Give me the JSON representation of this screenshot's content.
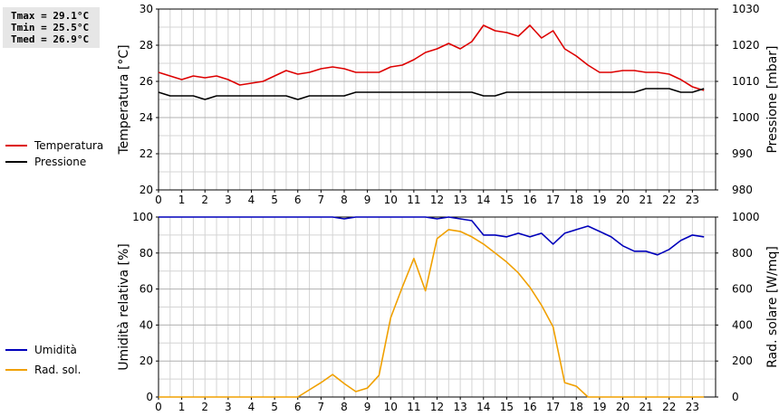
{
  "stats": {
    "tmax": "Tmax = 29.1°C",
    "tmin": "Tmin = 25.5°C",
    "tmed": "Tmed = 26.9°C"
  },
  "chart_data": [
    {
      "type": "line",
      "x_ticks": [
        "0",
        "1",
        "2",
        "3",
        "4",
        "5",
        "6",
        "7",
        "8",
        "9",
        "10",
        "11",
        "12",
        "13",
        "14",
        "15",
        "16",
        "17",
        "18",
        "19",
        "20",
        "21",
        "22",
        "23"
      ],
      "xlim": [
        0,
        24
      ],
      "grid": true,
      "legend_placement": "left",
      "ylabel": "Temperatura [°C]",
      "ylim": [
        20,
        30
      ],
      "y_ticks": [
        20,
        22,
        24,
        26,
        28,
        30
      ],
      "y2label": "Pressione [mbar]",
      "y2lim": [
        980,
        1030
      ],
      "y2_ticks": [
        980,
        990,
        1000,
        1010,
        1020,
        1030
      ],
      "series": [
        {
          "name": "Temperatura",
          "axis": "left",
          "color": "#dd0000",
          "x": [
            0,
            0.5,
            1,
            1.5,
            2,
            2.5,
            3,
            3.5,
            4,
            4.5,
            5,
            5.5,
            6,
            6.5,
            7,
            7.5,
            8,
            8.5,
            9,
            9.5,
            10,
            10.5,
            11,
            11.5,
            12,
            12.5,
            13,
            13.5,
            14,
            14.5,
            15,
            15.5,
            16,
            16.5,
            17,
            17.5,
            18,
            18.5,
            19,
            19.5,
            20,
            20.5,
            21,
            21.5,
            22,
            22.5,
            23,
            23.5
          ],
          "values": [
            26.5,
            26.3,
            26.1,
            26.3,
            26.2,
            26.3,
            26.1,
            25.8,
            25.9,
            26.0,
            26.3,
            26.6,
            26.4,
            26.5,
            26.7,
            26.8,
            26.7,
            26.5,
            26.5,
            26.5,
            26.8,
            26.9,
            27.2,
            27.6,
            27.8,
            28.1,
            27.8,
            28.2,
            29.1,
            28.8,
            28.7,
            28.5,
            29.1,
            28.4,
            28.8,
            27.8,
            27.4,
            26.9,
            26.5,
            26.5,
            26.6,
            26.6,
            26.5,
            26.5,
            26.4,
            26.1,
            25.7,
            25.5
          ]
        },
        {
          "name": "Pressione",
          "axis": "right",
          "color": "#000000",
          "x": [
            0,
            0.5,
            1,
            1.5,
            2,
            2.5,
            3,
            3.5,
            4,
            4.5,
            5,
            5.5,
            6,
            6.5,
            7,
            7.5,
            8,
            8.5,
            9,
            9.5,
            10,
            10.5,
            11,
            11.5,
            12,
            12.5,
            13,
            13.5,
            14,
            14.5,
            15,
            15.5,
            16,
            16.5,
            17,
            17.5,
            18,
            18.5,
            19,
            19.5,
            20,
            20.5,
            21,
            21.5,
            22,
            22.5,
            23,
            23.5
          ],
          "values": [
            1007,
            1006,
            1006,
            1006,
            1005,
            1006,
            1006,
            1006,
            1006,
            1006,
            1006,
            1006,
            1005,
            1006,
            1006,
            1006,
            1006,
            1007,
            1007,
            1007,
            1007,
            1007,
            1007,
            1007,
            1007,
            1007,
            1007,
            1007,
            1006,
            1006,
            1007,
            1007,
            1007,
            1007,
            1007,
            1007,
            1007,
            1007,
            1007,
            1007,
            1007,
            1007,
            1008,
            1008,
            1008,
            1007,
            1007,
            1008
          ]
        }
      ]
    },
    {
      "type": "line",
      "x_ticks": [
        "0",
        "1",
        "2",
        "3",
        "4",
        "5",
        "6",
        "7",
        "8",
        "9",
        "10",
        "11",
        "12",
        "13",
        "14",
        "15",
        "16",
        "17",
        "18",
        "19",
        "20",
        "21",
        "22",
        "23"
      ],
      "xlim": [
        0,
        24
      ],
      "grid": true,
      "legend_placement": "left",
      "ylabel": "Umidità relativa [%]",
      "ylim": [
        0,
        100
      ],
      "y_ticks": [
        0,
        20,
        40,
        60,
        80,
        100
      ],
      "y2label": "Rad. solare [W/mq]",
      "y2lim": [
        0,
        1000
      ],
      "y2_ticks": [
        0,
        200,
        400,
        600,
        800,
        1000
      ],
      "series": [
        {
          "name": "Umidità",
          "axis": "left",
          "color": "#0000bb",
          "x": [
            0,
            0.5,
            1,
            1.5,
            2,
            2.5,
            3,
            3.5,
            4,
            4.5,
            5,
            5.5,
            6,
            6.5,
            7,
            7.5,
            8,
            8.5,
            9,
            9.5,
            10,
            10.5,
            11,
            11.5,
            12,
            12.5,
            13,
            13.5,
            14,
            14.5,
            15,
            15.5,
            16,
            16.5,
            17,
            17.5,
            18,
            18.5,
            19,
            19.5,
            20,
            20.5,
            21,
            21.5,
            22,
            22.5,
            23,
            23.5
          ],
          "values": [
            100,
            100,
            100,
            100,
            100,
            100,
            100,
            100,
            100,
            100,
            100,
            100,
            100,
            100,
            100,
            100,
            99,
            100,
            100,
            100,
            100,
            100,
            100,
            100,
            99,
            100,
            99,
            98,
            90,
            90,
            89,
            91,
            89,
            91,
            85,
            91,
            93,
            95,
            92,
            89,
            84,
            81,
            81,
            79,
            82,
            87,
            90,
            89
          ]
        },
        {
          "name": "Rad. sol.",
          "axis": "right",
          "color": "#f0a000",
          "x": [
            0,
            0.5,
            1,
            1.5,
            2,
            2.5,
            3,
            3.5,
            4,
            4.5,
            5,
            5.5,
            6,
            6.5,
            7,
            7.5,
            8,
            8.5,
            9,
            9.5,
            10,
            10.5,
            11,
            11.5,
            12,
            12.5,
            13,
            13.5,
            14,
            14.5,
            15,
            15.5,
            16,
            16.5,
            17,
            17.5,
            18,
            18.5,
            19,
            19.5,
            20,
            20.5,
            21,
            21.5,
            22,
            22.5,
            23,
            23.5
          ],
          "values": [
            0,
            0,
            0,
            0,
            0,
            0,
            0,
            0,
            0,
            0,
            0,
            0,
            0,
            40,
            80,
            125,
            75,
            30,
            50,
            120,
            440,
            610,
            770,
            590,
            880,
            930,
            920,
            890,
            850,
            800,
            750,
            690,
            610,
            510,
            390,
            80,
            60,
            0,
            0,
            0,
            0,
            0,
            0,
            0,
            0,
            0,
            0,
            0
          ]
        }
      ]
    }
  ]
}
